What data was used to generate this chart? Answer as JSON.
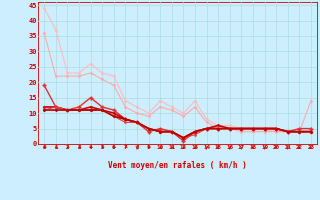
{
  "xlabel": "Vent moyen/en rafales ( km/h )",
  "background_color": "#cceeff",
  "grid_color": "#aadddd",
  "line_color_dark": "#cc0000",
  "xlim": [
    -0.5,
    23.5
  ],
  "ylim": [
    0,
    46
  ],
  "yticks": [
    0,
    5,
    10,
    15,
    20,
    25,
    30,
    35,
    40,
    45
  ],
  "xticks": [
    0,
    1,
    2,
    3,
    4,
    5,
    6,
    7,
    8,
    9,
    10,
    11,
    12,
    13,
    14,
    15,
    16,
    17,
    18,
    19,
    20,
    21,
    22,
    23
  ],
  "series": [
    {
      "x": [
        0,
        1,
        2,
        3,
        4,
        5,
        6,
        7,
        8,
        9,
        10,
        11,
        12,
        13,
        14,
        15,
        16,
        17,
        18,
        19,
        20,
        21,
        22,
        23
      ],
      "y": [
        44,
        37,
        23,
        23,
        26,
        23,
        22,
        14,
        12,
        10,
        14,
        12,
        10,
        14,
        8,
        6,
        6,
        5,
        5,
        5,
        4,
        4,
        4,
        4
      ],
      "color": "#ffbbbb",
      "lw": 0.8,
      "marker": "D",
      "ms": 1.5
    },
    {
      "x": [
        0,
        1,
        2,
        3,
        4,
        5,
        6,
        7,
        8,
        9,
        10,
        11,
        12,
        13,
        14,
        15,
        16,
        17,
        18,
        19,
        20,
        21,
        22,
        23
      ],
      "y": [
        36,
        22,
        22,
        22,
        23,
        21,
        19,
        12,
        10,
        9,
        12,
        11,
        9,
        12,
        7,
        5,
        5,
        4,
        4,
        4,
        4,
        4,
        4,
        14
      ],
      "color": "#ffaaaa",
      "lw": 0.8,
      "marker": "D",
      "ms": 1.5
    },
    {
      "x": [
        0,
        1,
        2,
        3,
        4,
        5,
        6,
        7,
        8,
        9,
        10,
        11,
        12,
        13,
        14,
        15,
        16,
        17,
        18,
        19,
        20,
        21,
        22,
        23
      ],
      "y": [
        19,
        12,
        11,
        12,
        15,
        12,
        11,
        8,
        7,
        4,
        5,
        4,
        1,
        4,
        5,
        5,
        5,
        5,
        5,
        5,
        5,
        4,
        5,
        5
      ],
      "color": "#dd3333",
      "lw": 1.0,
      "marker": "P",
      "ms": 2.5
    },
    {
      "x": [
        0,
        1,
        2,
        3,
        4,
        5,
        6,
        7,
        8,
        9,
        10,
        11,
        12,
        13,
        14,
        15,
        16,
        17,
        18,
        19,
        20,
        21,
        22,
        23
      ],
      "y": [
        12,
        12,
        11,
        11,
        12,
        11,
        10,
        8,
        7,
        5,
        4,
        4,
        2,
        4,
        5,
        6,
        5,
        5,
        5,
        5,
        5,
        4,
        4,
        4
      ],
      "color": "#cc0000",
      "lw": 1.2,
      "marker": "D",
      "ms": 1.5
    },
    {
      "x": [
        0,
        1,
        2,
        3,
        4,
        5,
        6,
        7,
        8,
        9,
        10,
        11,
        12,
        13,
        14,
        15,
        16,
        17,
        18,
        19,
        20,
        21,
        22,
        23
      ],
      "y": [
        12,
        12,
        11,
        11,
        11,
        11,
        9,
        8,
        7,
        5,
        4,
        4,
        2,
        4,
        5,
        5,
        5,
        5,
        5,
        5,
        5,
        4,
        4,
        4
      ],
      "color": "#cc2222",
      "lw": 1.0,
      "marker": "D",
      "ms": 1.5
    },
    {
      "x": [
        0,
        1,
        2,
        3,
        4,
        5,
        6,
        7,
        8,
        9,
        10,
        11,
        12,
        13,
        14,
        15,
        16,
        17,
        18,
        19,
        20,
        21,
        22,
        23
      ],
      "y": [
        11,
        12,
        11,
        11,
        11,
        11,
        9,
        7,
        7,
        5,
        4,
        4,
        2,
        3,
        5,
        5,
        5,
        5,
        5,
        5,
        5,
        4,
        4,
        4
      ],
      "color": "#dd4444",
      "lw": 0.8,
      "marker": "D",
      "ms": 1.5
    },
    {
      "x": [
        0,
        1,
        2,
        3,
        4,
        5,
        6,
        7,
        8,
        9,
        10,
        11,
        12,
        13,
        14,
        15,
        16,
        17,
        18,
        19,
        20,
        21,
        22,
        23
      ],
      "y": [
        11,
        11,
        11,
        11,
        11,
        11,
        9,
        8,
        7,
        5,
        4,
        4,
        2,
        4,
        5,
        5,
        5,
        5,
        5,
        5,
        5,
        4,
        4,
        4
      ],
      "color": "#bb0000",
      "lw": 1.2,
      "marker": "D",
      "ms": 1.5
    }
  ],
  "arrow_angles": [
    225,
    225,
    225,
    225,
    225,
    225,
    225,
    225,
    270,
    225,
    180,
    225,
    225,
    225,
    270,
    315,
    270,
    270,
    315,
    270,
    315,
    270,
    315,
    315
  ]
}
